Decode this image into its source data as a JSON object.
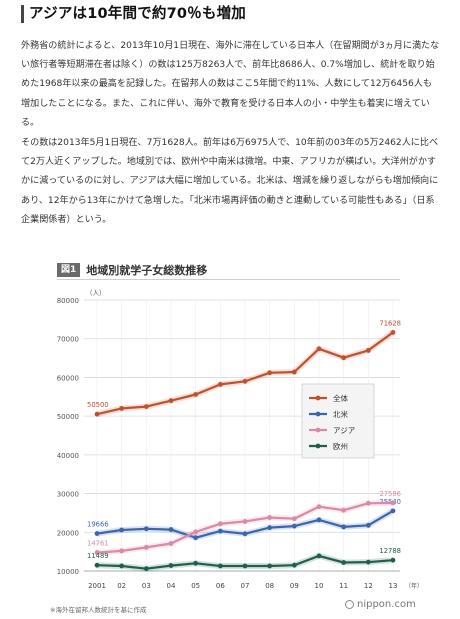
{
  "article": {
    "headline": "アジアは10年間で約70％も増加",
    "paragraph1": "外務省の統計によると、2013年10月1日現在、海外に滞在している日本人（在留期間が3ヵ月に満たない旅行者等短期滞在者は除く）の数は125万8263人で、前年比8686人、0.7%増加し、統計を取り始めた1968年以来の最高を記録した。在留邦人の数はここ5年間で約11%、人数にして12万6456人も増加したことになる。また、これに伴い、海外で教育を受ける日本人の小・中学生も着実に増えている。",
    "paragraph2": "その数は2013年5月1日現在、7万1628人。前年は6万6975人で、10年前の03年の5万2462人に比べて2万人近くアップした。地域別では、欧州や中南米は微増。中東、アフリカが横ばい。大洋州がかすかに減っているのに対し、アジアは大幅に増加している。北米は、増減を繰り返しながらも増加傾向にあり、12年から13年にかけて急増した。「北米市場再評価の動きと連動している可能性もある」（日系企業関係者）という。"
  },
  "figure": {
    "badge": "図1",
    "title": "地域別就学子女総数推移",
    "footnote": "※海外在留邦人数統計を基に作成",
    "brand": "nippon.com"
  },
  "chart_data": {
    "type": "line",
    "title": "地域別就学子女総数推移",
    "ylabel": "（人）",
    "xlabel": "（年）",
    "categories": [
      "2001",
      "02",
      "03",
      "04",
      "05",
      "06",
      "07",
      "08",
      "09",
      "10",
      "11",
      "12",
      "13"
    ],
    "ylim": [
      10000,
      80000
    ],
    "yticks": [
      10000,
      20000,
      30000,
      40000,
      50000,
      60000,
      70000,
      80000
    ],
    "grid": true,
    "legend_position": "center-right",
    "series": [
      {
        "name": "全体",
        "color": "#c0512d",
        "values": [
          50500,
          52000,
          52462,
          54000,
          55600,
          58200,
          59000,
          61200,
          61400,
          67400,
          65100,
          66975,
          71628
        ],
        "labels": [
          {
            "index": 0,
            "text": "50500"
          },
          {
            "index": 12,
            "text": "71628"
          }
        ]
      },
      {
        "name": "北米",
        "color": "#3a66b0",
        "values": [
          19666,
          20600,
          20900,
          20700,
          18600,
          20300,
          19600,
          21200,
          21600,
          23200,
          21400,
          21800,
          25540
        ],
        "labels": [
          {
            "index": 0,
            "text": "19666"
          },
          {
            "index": 12,
            "text": "25540"
          }
        ]
      },
      {
        "name": "アジア",
        "color": "#d98aa6",
        "values": [
          14761,
          15200,
          16100,
          17100,
          20100,
          22200,
          22800,
          23800,
          23500,
          26600,
          25700,
          27500,
          27586
        ],
        "labels": [
          {
            "index": 0,
            "text": "14761"
          },
          {
            "index": 12,
            "text": "27586"
          }
        ]
      },
      {
        "name": "欧州",
        "color": "#1f5f50",
        "values": [
          11489,
          11300,
          10600,
          11400,
          12000,
          11300,
          11300,
          11300,
          11500,
          13900,
          12200,
          12300,
          12788
        ],
        "labels": [
          {
            "index": 0,
            "text": "11489"
          },
          {
            "index": 12,
            "text": "12788"
          }
        ]
      }
    ]
  }
}
